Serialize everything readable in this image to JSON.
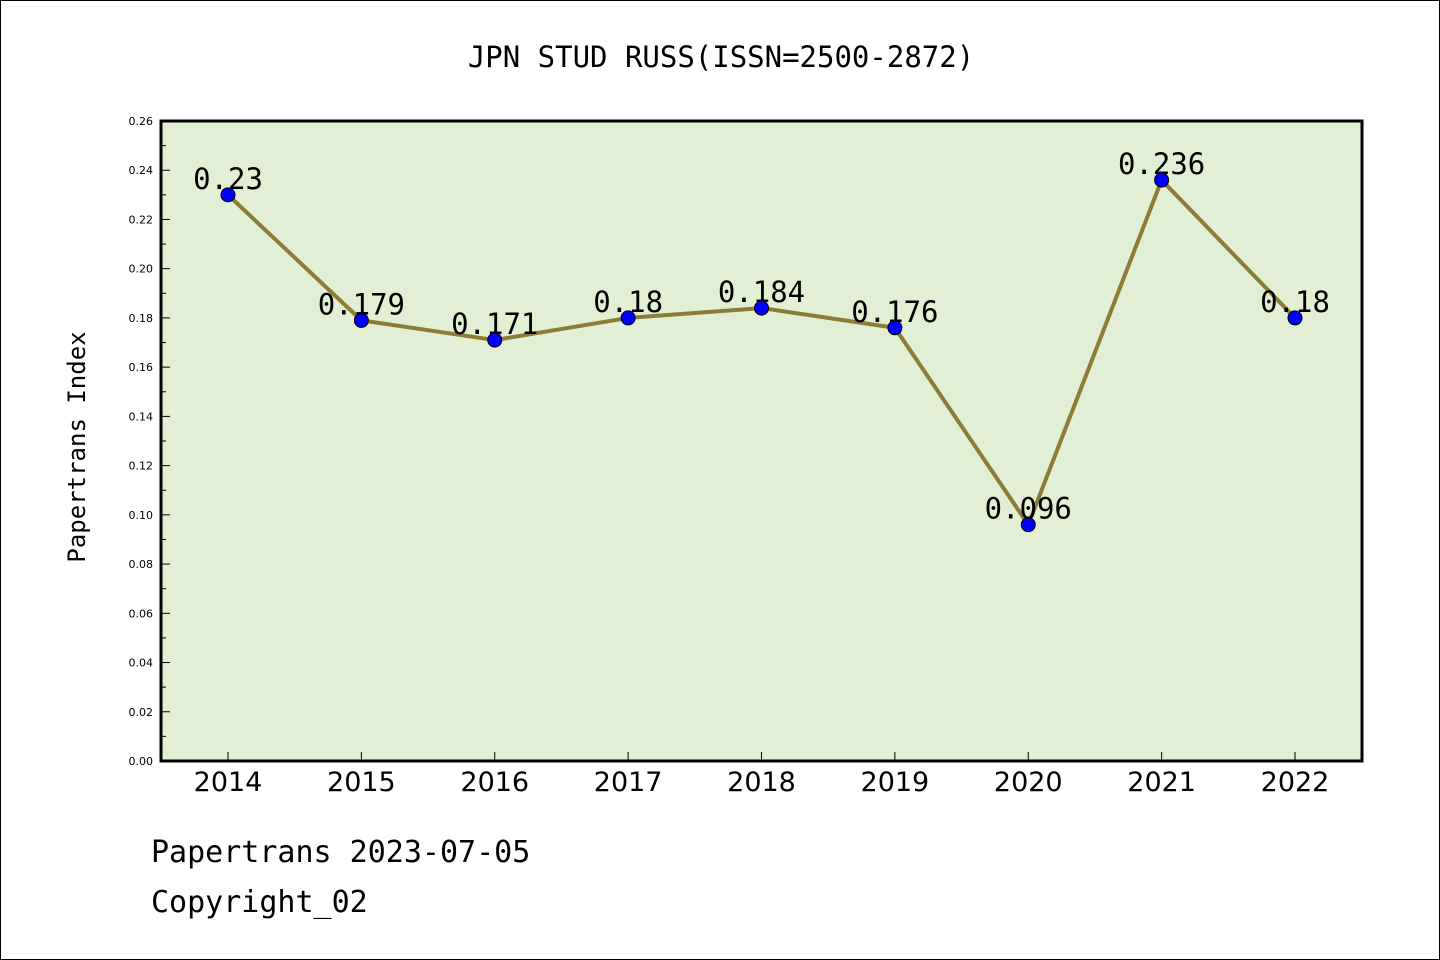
{
  "chart_data": {
    "type": "line",
    "title": "JPN STUD RUSS(ISSN=2500-2872)",
    "ylabel": "Papertrans Index",
    "xlabel": "",
    "categories": [
      "2014",
      "2015",
      "2016",
      "2017",
      "2018",
      "2019",
      "2020",
      "2021",
      "2022"
    ],
    "values": [
      0.23,
      0.179,
      0.171,
      0.18,
      0.184,
      0.176,
      0.096,
      0.236,
      0.18
    ],
    "data_labels": [
      "0.23",
      "0.179",
      "0.171",
      "0.18",
      "0.184",
      "0.176",
      "0.096",
      "0.236",
      "0.18"
    ],
    "ylim": [
      0,
      0.26
    ],
    "yticks": [
      "0.00",
      "0.02",
      "0.04",
      "0.06",
      "0.08",
      "0.10",
      "0.12",
      "0.14",
      "0.16",
      "0.18",
      "0.20",
      "0.22",
      "0.24",
      "0.26"
    ],
    "grid": false,
    "legend": "none",
    "colors": {
      "line": "#8b7d35",
      "marker": "#0000ff",
      "plot_background": "#e2efd5",
      "axes": "#000000"
    }
  },
  "footer": {
    "source": "Papertrans 2023-07-05",
    "copyright": "Copyright_02"
  }
}
